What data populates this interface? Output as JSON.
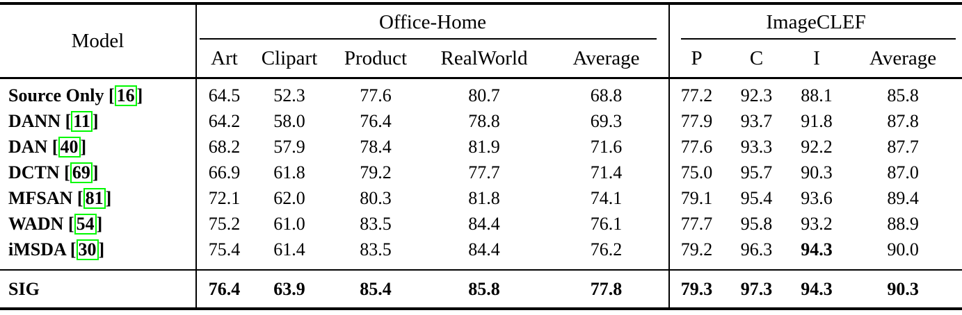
{
  "table": {
    "model_header": "Model",
    "groups": [
      {
        "label": "Office-Home",
        "columns": [
          "Art",
          "Clipart",
          "Product",
          "RealWorld",
          "Average"
        ]
      },
      {
        "label": "ImageCLEF",
        "columns": [
          "P",
          "C",
          "I",
          "Average"
        ]
      }
    ],
    "rows": [
      {
        "model": "Source Only",
        "cite": "16",
        "values": [
          "64.5",
          "52.3",
          "77.6",
          "80.7",
          "68.8",
          "77.2",
          "92.3",
          "88.1",
          "85.8"
        ],
        "bold_indices": []
      },
      {
        "model": "DANN",
        "cite": "11",
        "values": [
          "64.2",
          "58.0",
          "76.4",
          "78.8",
          "69.3",
          "77.9",
          "93.7",
          "91.8",
          "87.8"
        ],
        "bold_indices": []
      },
      {
        "model": "DAN",
        "cite": "40",
        "values": [
          "68.2",
          "57.9",
          "78.4",
          "81.9",
          "71.6",
          "77.6",
          "93.3",
          "92.2",
          "87.7"
        ],
        "bold_indices": []
      },
      {
        "model": "DCTN",
        "cite": "69",
        "values": [
          "66.9",
          "61.8",
          "79.2",
          "77.7",
          "71.4",
          "75.0",
          "95.7",
          "90.3",
          "87.0"
        ],
        "bold_indices": []
      },
      {
        "model": "MFSAN",
        "cite": "81",
        "values": [
          "72.1",
          "62.0",
          "80.3",
          "81.8",
          "74.1",
          "79.1",
          "95.4",
          "93.6",
          "89.4"
        ],
        "bold_indices": []
      },
      {
        "model": "WADN",
        "cite": "54",
        "values": [
          "75.2",
          "61.0",
          "83.5",
          "84.4",
          "76.1",
          "77.7",
          "95.8",
          "93.2",
          "88.9"
        ],
        "bold_indices": []
      },
      {
        "model": "iMSDA",
        "cite": "30",
        "values": [
          "75.4",
          "61.4",
          "83.5",
          "84.4",
          "76.2",
          "79.2",
          "96.3",
          "94.3",
          "90.0"
        ],
        "bold_indices": [
          7
        ]
      }
    ],
    "footer": {
      "model": "SIG",
      "values": [
        "76.4",
        "63.9",
        "85.4",
        "85.8",
        "77.8",
        "79.3",
        "97.3",
        "94.3",
        "90.3"
      ]
    }
  },
  "colors": {
    "citation_box": "#00f800",
    "text": "#000000",
    "background": "#ffffff"
  }
}
